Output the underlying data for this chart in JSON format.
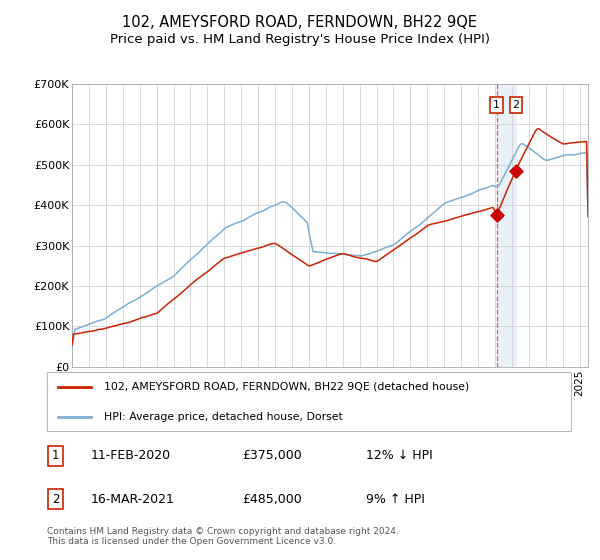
{
  "title": "102, AMEYSFORD ROAD, FERNDOWN, BH22 9QE",
  "subtitle": "Price paid vs. HM Land Registry's House Price Index (HPI)",
  "ylim": [
    0,
    700000
  ],
  "yticks": [
    0,
    100000,
    200000,
    300000,
    400000,
    500000,
    600000,
    700000
  ],
  "ytick_labels": [
    "£0",
    "£100K",
    "£200K",
    "£300K",
    "£400K",
    "£500K",
    "£600K",
    "£700K"
  ],
  "hpi_color": "#7bafd4",
  "price_color": "#cc2200",
  "marker_color": "#cc0000",
  "highlight_color": "#e8f0f8",
  "vline_color": "#dd4444",
  "point1_x": 2020.1,
  "point2_x": 2021.25,
  "point1_y": 375000,
  "point2_y": 485000,
  "point1_date": "11-FEB-2020",
  "point1_price": "£375,000",
  "point1_hpi": "12% ↓ HPI",
  "point2_date": "16-MAR-2021",
  "point2_price": "£485,000",
  "point2_hpi": "9% ↑ HPI",
  "legend1": "102, AMEYSFORD ROAD, FERNDOWN, BH22 9QE (detached house)",
  "legend2": "HPI: Average price, detached house, Dorset",
  "footer": "Contains HM Land Registry data © Crown copyright and database right 2024.\nThis data is licensed under the Open Government Licence v3.0.",
  "title_fontsize": 10.5,
  "subtitle_fontsize": 9.5,
  "background_color": "#ffffff",
  "grid_color": "#cccccc",
  "xlim_start": 1995,
  "xlim_end": 2025.5
}
